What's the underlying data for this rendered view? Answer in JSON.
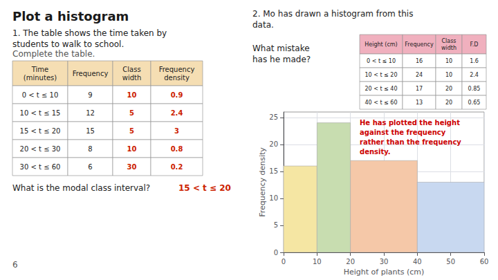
{
  "chart_data": {
    "type": "histogram",
    "title": "Plot a histogram",
    "bins": [
      0,
      10,
      20,
      40,
      60
    ],
    "values": [
      16,
      24,
      17,
      13
    ],
    "colors": [
      "#f5e6a3",
      "#c8ddb0",
      "#f5c8a8",
      "#c8d8f0"
    ],
    "edge_color": "#aaaaaa",
    "x_label": "Height of plants (cm)",
    "y_label": "Frequency density",
    "xlim": [
      0,
      60
    ],
    "ylim": [
      0,
      26
    ],
    "xticks": [
      0,
      10,
      20,
      30,
      40,
      50,
      60
    ],
    "yticks": [
      0,
      5,
      10,
      15,
      20,
      25
    ],
    "grid": true,
    "annotations": [
      {
        "text": "He has plotted the height\nagainst the frequency\nrather than the frequency\ndensity.",
        "color": "#cc0000"
      }
    ]
  },
  "page": {
    "question1": {
      "lines": [
        "1. The table shows the time taken by",
        "students to walk to school."
      ],
      "instruction": "Complete the table.",
      "table": {
        "headers": [
          "Time\n(minutes)",
          "Frequency",
          "Class\nwidth",
          "Frequency\ndensity"
        ],
        "rows": [
          [
            "0 < t ≤ 10",
            "9",
            "10",
            "0.9"
          ],
          [
            "10 < t ≤ 15",
            "12",
            "5",
            "2.4"
          ],
          [
            "15 < t ≤ 20",
            "15",
            "5",
            "3"
          ],
          [
            "20 < t ≤ 30",
            "8",
            "10",
            "0.8"
          ],
          [
            "30 < t ≤ 60",
            "6",
            "30",
            "0.2"
          ]
        ],
        "answer_cols": [
          2,
          3
        ],
        "header_color": "#f5deb3"
      },
      "modal_question": "What is the modal class interval?",
      "modal_answer": "15 < t ≤ 20"
    },
    "question2": {
      "lines": [
        "2. Mo has drawn a histogram from this",
        "data."
      ],
      "table": {
        "headers": [
          "Height (cm)",
          "Frequency",
          "Class\nwidth",
          "F.D"
        ],
        "rows": [
          [
            "0 < t ≤ 10",
            "16",
            "10",
            "1.6"
          ],
          [
            "10 < t ≤ 20",
            "24",
            "10",
            "2.4"
          ],
          [
            "20 < t ≤ 40",
            "17",
            "20",
            "0.85"
          ],
          [
            "40 < t ≤ 60",
            "13",
            "20",
            "0.65"
          ]
        ],
        "answer_cols": [],
        "header_color": "#f0b0be"
      },
      "question_lines": [
        "What mistake",
        "has he made?"
      ]
    },
    "answer_color": "#cc2200",
    "page_number": "6"
  }
}
